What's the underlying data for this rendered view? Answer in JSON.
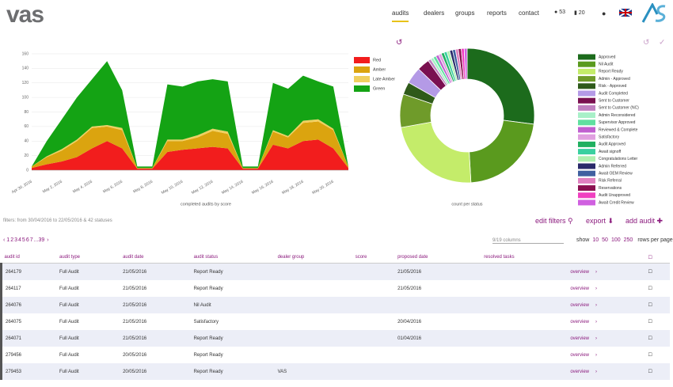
{
  "header": {
    "logo": "vas",
    "nav": [
      "audits",
      "dealers",
      "groups",
      "reports",
      "contact"
    ],
    "notifications": "53",
    "tasks": "20"
  },
  "chart_data": [
    {
      "type": "stacked_area",
      "caption": "completed audits by score",
      "categories": [
        "Apr 30, 2016",
        null,
        "May 2, 2016",
        null,
        "May 4, 2016",
        null,
        "May 6, 2016",
        null,
        "May 8, 2016",
        null,
        "May 10, 2016",
        null,
        "May 12, 2016",
        null,
        "May 14, 2016",
        null,
        "May 16, 2016",
        null,
        "May 18, 2016",
        null,
        "May 20, 2016",
        null
      ],
      "series": [
        {
          "name": "Red",
          "color": "#f21d1d",
          "values": [
            3,
            8,
            12,
            18,
            30,
            40,
            30,
            2,
            2,
            25,
            28,
            30,
            32,
            30,
            2,
            2,
            35,
            30,
            40,
            42,
            30,
            3
          ]
        },
        {
          "name": "Amber",
          "color": "#dba40f",
          "values": [
            2,
            10,
            15,
            22,
            28,
            20,
            25,
            1,
            1,
            15,
            12,
            15,
            22,
            20,
            1,
            1,
            18,
            15,
            25,
            25,
            25,
            2
          ]
        },
        {
          "name": "Late Amber",
          "color": "#f0d060",
          "values": [
            0,
            1,
            2,
            2,
            2,
            2,
            3,
            0,
            0,
            2,
            2,
            3,
            3,
            3,
            0,
            0,
            2,
            2,
            3,
            3,
            2,
            0
          ]
        },
        {
          "name": "Green",
          "color": "#14a314",
          "values": [
            0,
            21,
            41,
            58,
            65,
            88,
            52,
            2,
            2,
            76,
            73,
            74,
            68,
            69,
            2,
            2,
            65,
            65,
            62,
            52,
            58,
            0
          ]
        }
      ],
      "ylim": [
        0,
        160
      ],
      "yticks": [
        0,
        20,
        40,
        60,
        80,
        100,
        120,
        140,
        160
      ],
      "grid": true
    },
    {
      "type": "donut",
      "caption": "count per status",
      "categories": [
        "Approved",
        "Nil Audit",
        "Report Ready",
        "Admin - Approved",
        "Risk - Approved",
        "Audit Completed",
        "Sent to Customer",
        "Sent to Customer (NC)",
        "Admin Reconsidered",
        "Supervisor Approved",
        "Reviewed & Complete",
        "Satisfactory",
        "Audit Approved",
        "Await signoff",
        "Congratulations Letter",
        "Admin Referred",
        "Await OEM Review",
        "Risk Referral",
        "Reservations",
        "Audit Unapproved",
        "Await Credit Review"
      ],
      "values": [
        270,
        220,
        230,
        80,
        30,
        40,
        30,
        7,
        7,
        7,
        7,
        7,
        7,
        7,
        7,
        7,
        7,
        7,
        7,
        7,
        7
      ],
      "colors": [
        "#1c6b1c",
        "#5a9a1e",
        "#c4ec6a",
        "#6f9b2a",
        "#2f5a1a",
        "#b49ae6",
        "#7a1050",
        "#c080c0",
        "#a8f0c8",
        "#60e0a0",
        "#c060d0",
        "#e0a0e0",
        "#20b060",
        "#3ad0a0",
        "#b0f0b0",
        "#2a2a6a",
        "#4060a0",
        "#e080c0",
        "#8a1050",
        "#f040c0",
        "#d060e0"
      ]
    }
  ],
  "filters": "filters: from 30/04/2016 to 22/05/2016 & 42 statuses",
  "actions": [
    "edit filters",
    "export",
    "add audit"
  ],
  "pagination": [
    "1",
    "2",
    "3",
    "4",
    "5",
    "6",
    "7",
    "...39"
  ],
  "columns_select": "9/19 columns",
  "show": {
    "label": "show",
    "options": [
      "10",
      "50",
      "100",
      "250"
    ],
    "suffix": "rows per page"
  },
  "table": {
    "headers": [
      "audit id",
      "audit type",
      "audit date",
      "audit status",
      "dealer group",
      "score",
      "proposed date",
      "resolved tasks"
    ],
    "link": "overview",
    "rows": [
      {
        "id": "264179",
        "type": "Full Audit",
        "date": "21/05/2016",
        "status": "Report Ready",
        "proposed": "21/05/2016"
      },
      {
        "id": "264117",
        "type": "Full Audit",
        "date": "21/05/2016",
        "status": "Report Ready",
        "proposed": "21/05/2016"
      },
      {
        "id": "264076",
        "type": "Full Audit",
        "date": "21/05/2016",
        "status": "Nil Audit"
      },
      {
        "id": "264075",
        "type": "Full Audit",
        "date": "21/05/2016",
        "status": "Satisfactory",
        "proposed": "20/04/2016"
      },
      {
        "id": "264071",
        "type": "Full Audit",
        "date": "21/05/2016",
        "status": "Report Ready",
        "proposed": "01/04/2016"
      },
      {
        "id": "279456",
        "type": "Full Audit",
        "date": "20/05/2016",
        "status": "Report Ready"
      },
      {
        "id": "279453",
        "type": "Full Audit",
        "date": "20/05/2016",
        "status": "Report Ready",
        "group": "VAS"
      }
    ]
  }
}
